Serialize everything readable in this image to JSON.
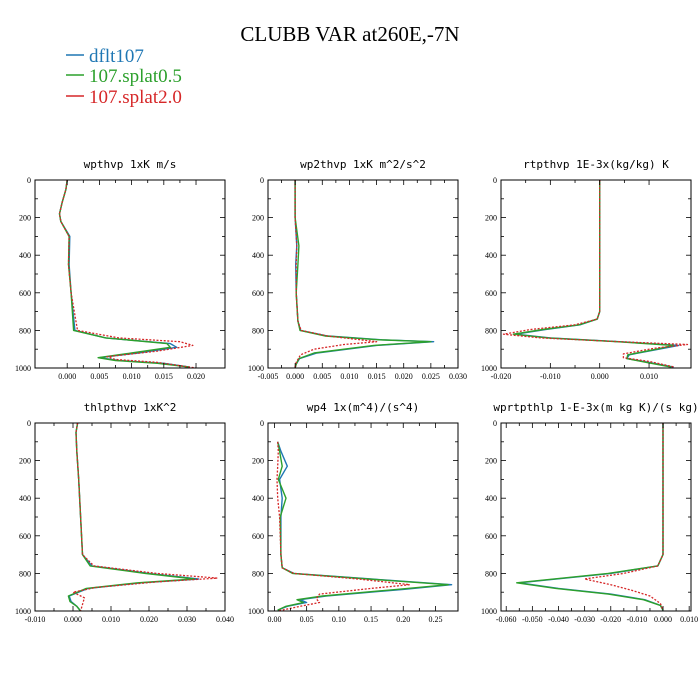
{
  "chart_data": {
    "type": "line",
    "title": "CLUBB VAR at260E,-7N",
    "legend": [
      {
        "name": "dflt107",
        "color": "#1f77b4",
        "dash": "solid"
      },
      {
        "name": "107.splat0.5",
        "color": "#2ca02c",
        "dash": "solid"
      },
      {
        "name": "107.splat2.0",
        "color": "#d62728",
        "dash": "dotted"
      }
    ],
    "legend_position": "top-left",
    "ylim": [
      1000,
      0
    ],
    "yticks": [
      "0",
      "200",
      "400",
      "600",
      "800",
      "1000"
    ],
    "panels": [
      {
        "title": "wpthvp   1xK m/s",
        "xlim": [
          -0.005,
          0.0245
        ],
        "xticks": [
          0,
          0.005,
          0.01,
          0.015,
          0.02
        ],
        "xtick_labels": [
          "0.000",
          "0.005",
          "0.010",
          "0.015",
          "0.020"
        ],
        "series": [
          {
            "name": "dflt107",
            "x": [
              0,
              -0.0002,
              -0.0008,
              -0.0012,
              -0.001,
              0.0004,
              0.0003,
              0.0006,
              0.0012,
              0.006,
              0.016,
              0.017,
              0.011,
              0.005,
              0.008,
              0.015,
              0.019
            ],
            "y": [
              0,
              50,
              120,
              180,
              220,
              300,
              450,
              600,
              800,
              840,
              870,
              890,
              920,
              945,
              960,
              975,
              995
            ]
          },
          {
            "name": "107.splat0.5",
            "x": [
              0,
              -0.0002,
              -0.0008,
              -0.0012,
              -0.001,
              0.0003,
              0.0002,
              0.0006,
              0.001,
              0.006,
              0.0155,
              0.016,
              0.01,
              0.0048,
              0.0075,
              0.014,
              0.019
            ],
            "y": [
              0,
              50,
              120,
              180,
              220,
              300,
              450,
              600,
              800,
              840,
              870,
              890,
              920,
              945,
              960,
              975,
              995
            ]
          },
          {
            "name": "107.splat2.0",
            "x": [
              0,
              -0.0002,
              -0.0008,
              -0.0012,
              -0.001,
              0.0003,
              0.0002,
              0.0006,
              0.0016,
              0.008,
              0.0175,
              0.0195,
              0.014,
              0.0062,
              0.0075,
              0.014,
              0.02
            ],
            "y": [
              0,
              50,
              120,
              180,
              220,
              300,
              450,
              600,
              800,
              840,
              860,
              880,
              910,
              940,
              955,
              970,
              1000
            ]
          }
        ]
      },
      {
        "title": "wp2thvp   1xK m^2/s^2",
        "xlim": [
          -0.005,
          0.03
        ],
        "xticks": [
          -0.005,
          0,
          0.005,
          0.01,
          0.015,
          0.02,
          0.025,
          0.03
        ],
        "xtick_labels": [
          "-0.005",
          "0.000",
          "0.005",
          "0.010",
          "0.015",
          "0.020",
          "0.025",
          "0.030"
        ],
        "series": [
          {
            "name": "dflt107",
            "x": [
              0,
              0,
              0.0003,
              0.0001,
              0.0002,
              0.0005,
              0.001,
              0.006,
              0.016,
              0.0255,
              0.015,
              0.004,
              0.0008,
              0.0002,
              0
            ],
            "y": [
              0,
              200,
              350,
              450,
              600,
              750,
              800,
              830,
              850,
              860,
              880,
              920,
              950,
              980,
              1000
            ]
          },
          {
            "name": "107.splat0.5",
            "x": [
              0,
              0,
              0.0007,
              0.0005,
              0.0002,
              0.0005,
              0.0009,
              0.0055,
              0.0155,
              0.025,
              0.0145,
              0.0035,
              0.0007,
              0.0002,
              0
            ],
            "y": [
              0,
              200,
              350,
              450,
              600,
              750,
              800,
              830,
              850,
              860,
              880,
              920,
              950,
              980,
              1000
            ]
          },
          {
            "name": "107.splat2.0",
            "x": [
              0,
              0,
              0.0003,
              0.0002,
              0.0002,
              0.0005,
              0.0011,
              0.006,
              0.012,
              0.015,
              0.009,
              0.0035,
              0.001,
              0.0002,
              0
            ],
            "y": [
              0,
              200,
              350,
              450,
              600,
              750,
              800,
              830,
              850,
              860,
              875,
              900,
              930,
              970,
              1000
            ]
          }
        ]
      },
      {
        "title": "rtpthvp   1E-3x(kg/kg) K",
        "xlim": [
          -0.02,
          0.0185
        ],
        "xticks": [
          -0.02,
          -0.01,
          0,
          0.01
        ],
        "xtick_labels": [
          "-0.020",
          "-0.010",
          "0.000",
          "0.010"
        ],
        "series": [
          {
            "name": "dflt107",
            "x": [
              0,
              0,
              0,
              -0.0005,
              -0.004,
              -0.011,
              -0.017,
              -0.01,
              0.004,
              0.016,
              0.012,
              0.006,
              0.0055,
              0.01,
              0.015
            ],
            "y": [
              0,
              300,
              700,
              740,
              770,
              795,
              820,
              840,
              860,
              880,
              900,
              930,
              950,
              970,
              995
            ]
          },
          {
            "name": "107.splat0.5",
            "x": [
              0,
              0,
              0,
              -0.0005,
              -0.0042,
              -0.0115,
              -0.0175,
              -0.0105,
              0.0035,
              0.015,
              0.0115,
              0.0057,
              0.0055,
              0.0095,
              0.0145
            ],
            "y": [
              0,
              300,
              700,
              740,
              770,
              795,
              820,
              840,
              860,
              880,
              900,
              930,
              950,
              970,
              995
            ]
          },
          {
            "name": "107.splat2.0",
            "x": [
              0,
              0,
              0,
              -0.0005,
              -0.005,
              -0.014,
              -0.0195,
              -0.012,
              0.004,
              0.0178,
              0.011,
              0.0048,
              0.0048,
              0.01,
              0.0152
            ],
            "y": [
              0,
              300,
              700,
              740,
              770,
              795,
              820,
              840,
              860,
              875,
              895,
              925,
              945,
              965,
              995
            ]
          }
        ]
      },
      {
        "title": "thlpthvp   1xK^2",
        "xlim": [
          -0.01,
          0.04
        ],
        "xticks": [
          -0.01,
          0,
          0.01,
          0.02,
          0.03,
          0.04
        ],
        "xtick_labels": [
          "-0.010",
          "0.000",
          "0.010",
          "0.020",
          "0.030",
          "0.040"
        ],
        "series": [
          {
            "name": "dflt107",
            "x": [
              0.0012,
              0.0008,
              0.001,
              0.0015,
              0.002,
              0.0025,
              0.005,
              0.02,
              0.033,
              0.018,
              0.004,
              -0.001,
              -0.0005,
              0.001,
              0.002
            ],
            "y": [
              0,
              50,
              150,
              300,
              500,
              700,
              760,
              800,
              830,
              850,
              880,
              920,
              950,
              975,
              1000
            ]
          },
          {
            "name": "107.splat0.5",
            "x": [
              0.0012,
              0.0008,
              0.001,
              0.0015,
              0.002,
              0.0025,
              0.0045,
              0.019,
              0.032,
              0.017,
              0.0035,
              -0.0012,
              -0.0008,
              0.001,
              0.002
            ],
            "y": [
              0,
              50,
              150,
              300,
              500,
              700,
              760,
              800,
              830,
              850,
              880,
              920,
              950,
              975,
              1000
            ]
          },
          {
            "name": "107.splat2.0",
            "x": [
              0.0012,
              0.0008,
              0.001,
              0.0015,
              0.002,
              0.0025,
              0.0055,
              0.022,
              0.038,
              0.022,
              0.006,
              0,
              0.003,
              0.0025,
              0.002
            ],
            "y": [
              0,
              50,
              150,
              300,
              500,
              700,
              760,
              800,
              825,
              845,
              875,
              900,
              930,
              965,
              1000
            ]
          }
        ]
      },
      {
        "title": "wp4   1x(m^4)/(s^4)",
        "xlim": [
          -0.01,
          0.285
        ],
        "xticks": [
          0,
          0.05,
          0.1,
          0.15,
          0.2,
          0.25
        ],
        "xtick_labels": [
          "0.00",
          "0.05",
          "0.10",
          "0.15",
          "0.20",
          "0.25"
        ],
        "series": [
          {
            "name": "dflt107",
            "x": [
              0.005,
              0.01,
              0.02,
              0.008,
              0.012,
              0.01,
              0.01,
              0.012,
              0.03,
              0.15,
              0.275,
              0.2,
              0.08,
              0.04,
              0.05,
              0.02,
              0.005
            ],
            "y": [
              100,
              150,
              230,
              300,
              400,
              500,
              700,
              770,
              800,
              830,
              860,
              885,
              920,
              940,
              955,
              975,
              995
            ]
          },
          {
            "name": "107.splat0.5",
            "x": [
              0.005,
              0.008,
              0.012,
              0.006,
              0.018,
              0.009,
              0.01,
              0.012,
              0.028,
              0.145,
              0.27,
              0.19,
              0.075,
              0.035,
              0.045,
              0.018,
              0.005
            ],
            "y": [
              100,
              150,
              230,
              300,
              400,
              500,
              700,
              770,
              800,
              830,
              860,
              885,
              920,
              940,
              955,
              975,
              995
            ]
          },
          {
            "name": "107.splat2.0",
            "x": [
              0.005,
              0.006,
              0.005,
              0.004,
              0.005,
              0.008,
              0.01,
              0.012,
              0.03,
              0.13,
              0.21,
              0.15,
              0.07,
              0.065,
              0.07,
              0.04,
              0.005
            ],
            "y": [
              100,
              150,
              230,
              300,
              400,
              500,
              700,
              770,
              800,
              830,
              860,
              880,
              910,
              935,
              955,
              975,
              1000
            ]
          }
        ]
      },
      {
        "title": "wprtpthlp   1-E-3x(m kg K)/(s kg)",
        "xlim": [
          -0.062,
          0.0107
        ],
        "xticks": [
          -0.06,
          -0.05,
          -0.04,
          -0.03,
          -0.02,
          -0.01,
          0,
          0.01
        ],
        "xtick_labels": [
          "-0.060",
          "-0.050",
          "-0.040",
          "-0.030",
          "-0.020",
          "-0.010",
          "0.000",
          "0.010"
        ],
        "series": [
          {
            "name": "dflt107",
            "x": [
              0,
              0,
              0,
              -0.002,
              -0.02,
              -0.055,
              -0.04,
              -0.02,
              -0.007,
              -0.001,
              0
            ],
            "y": [
              0,
              300,
              700,
              760,
              800,
              850,
              880,
              910,
              940,
              970,
              995
            ]
          },
          {
            "name": "107.splat0.5",
            "x": [
              0,
              0,
              0,
              -0.002,
              -0.021,
              -0.056,
              -0.041,
              -0.021,
              -0.0075,
              -0.001,
              0
            ],
            "y": [
              0,
              300,
              700,
              760,
              800,
              850,
              880,
              910,
              940,
              970,
              995
            ]
          },
          {
            "name": "107.splat2.0",
            "x": [
              0,
              0,
              0,
              -0.002,
              -0.015,
              -0.03,
              -0.02,
              -0.012,
              -0.005,
              -0.001,
              0
            ],
            "y": [
              0,
              300,
              700,
              760,
              800,
              830,
              860,
              890,
              920,
              960,
              995
            ]
          }
        ]
      }
    ]
  }
}
